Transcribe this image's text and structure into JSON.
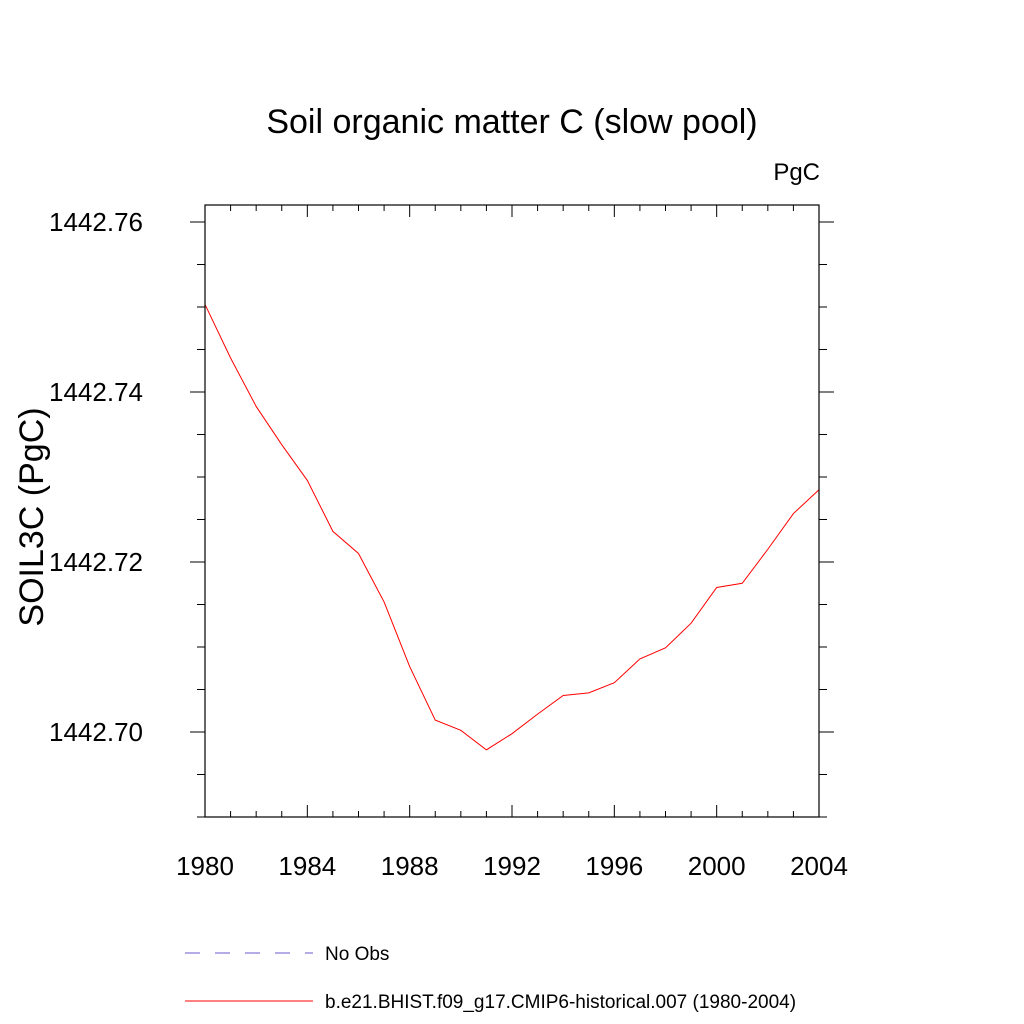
{
  "chart_data": {
    "type": "line",
    "title": "Soil organic matter C (slow pool)",
    "units": "PgC",
    "xlabel": "",
    "ylabel": "SOIL3C  (PgC)",
    "xlim": [
      1980,
      2004
    ],
    "ylim": [
      1442.69,
      1442.762
    ],
    "x_ticks": [
      1980,
      1984,
      1988,
      1992,
      1996,
      2000,
      2004
    ],
    "y_ticks": [
      1442.7,
      1442.72,
      1442.74,
      1442.76
    ],
    "x_tick_labels": [
      "1980",
      "1984",
      "1988",
      "1992",
      "1996",
      "2000",
      "2004"
    ],
    "y_tick_labels": [
      "1442.70",
      "1442.72",
      "1442.74",
      "1442.76"
    ],
    "grid": false,
    "legend_position": "bottom",
    "series": [
      {
        "name": "No Obs",
        "color": "#6a5acd",
        "style": "dashed",
        "x": [],
        "y": []
      },
      {
        "name": "b.e21.BHIST.f09_g17.CMIP6-historical.007 (1980-2004)",
        "color": "#ff0000",
        "style": "solid",
        "x": [
          1980,
          1981,
          1982,
          1983,
          1984,
          1985,
          1986,
          1987,
          1988,
          1989,
          1990,
          1991,
          1992,
          1993,
          1994,
          1995,
          1996,
          1997,
          1998,
          1999,
          2000,
          2001,
          2002,
          2003,
          2004
        ],
        "y": [
          1442.7503,
          1442.744,
          1442.7383,
          1442.7338,
          1442.7296,
          1442.7236,
          1442.721,
          1442.7153,
          1442.7077,
          1442.7014,
          1442.7002,
          1442.6979,
          1442.6998,
          1442.7021,
          1442.7043,
          1442.7046,
          1442.7058,
          1442.7086,
          1442.7099,
          1442.7128,
          1442.717,
          1442.7175,
          1442.7215,
          1442.7257,
          1442.7285
        ]
      }
    ]
  }
}
